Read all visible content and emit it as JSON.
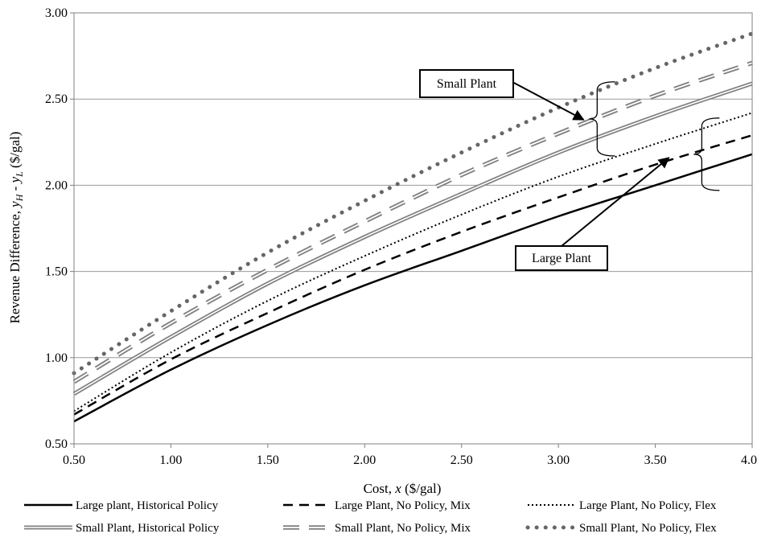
{
  "chart_data": {
    "type": "line",
    "xlabel": "Cost, x ($/gal)",
    "ylabel": "Revenue Difference, yH - yL ($/gal)",
    "xlim": [
      0.5,
      4.0
    ],
    "ylim": [
      0.5,
      3.0
    ],
    "x_ticks": [
      "0.50",
      "1.00",
      "1.50",
      "2.00",
      "2.50",
      "3.00",
      "3.50",
      "4.00"
    ],
    "y_ticks": [
      "0.50",
      "1.00",
      "1.50",
      "2.00",
      "2.50",
      "3.00"
    ],
    "grid": "horizontal",
    "legend_position": "bottom",
    "x": [
      0.5,
      1.0,
      1.5,
      2.0,
      2.5,
      3.0,
      3.5,
      4.0
    ],
    "series": [
      {
        "name": "Large plant, Historical Policy",
        "style": "solid",
        "color": "#000000",
        "values": [
          0.63,
          0.93,
          1.19,
          1.42,
          1.62,
          1.82,
          2.0,
          2.18
        ]
      },
      {
        "name": "Large Plant, No Policy, Mix",
        "style": "dashed",
        "color": "#000000",
        "values": [
          0.67,
          0.99,
          1.26,
          1.51,
          1.73,
          1.93,
          2.12,
          2.29
        ]
      },
      {
        "name": "Large Plant, No Policy, Flex",
        "style": "dotted",
        "color": "#000000",
        "values": [
          0.69,
          1.03,
          1.33,
          1.59,
          1.83,
          2.05,
          2.24,
          2.42
        ]
      },
      {
        "name": "Small Plant, Historical Policy",
        "style": "double",
        "color": "#808080",
        "values": [
          0.79,
          1.12,
          1.43,
          1.7,
          1.95,
          2.19,
          2.4,
          2.59
        ]
      },
      {
        "name": "Small Plant, No Policy, Mix",
        "style": "double-dashed",
        "color": "#808080",
        "values": [
          0.86,
          1.2,
          1.51,
          1.79,
          2.06,
          2.3,
          2.52,
          2.71
        ]
      },
      {
        "name": "Small Plant, No Policy, Flex",
        "style": "dots",
        "color": "#666666",
        "values": [
          0.91,
          1.27,
          1.61,
          1.91,
          2.19,
          2.45,
          2.68,
          2.88
        ]
      }
    ],
    "annotations": [
      {
        "label": "Small Plant"
      },
      {
        "label": "Large Plant"
      }
    ]
  }
}
